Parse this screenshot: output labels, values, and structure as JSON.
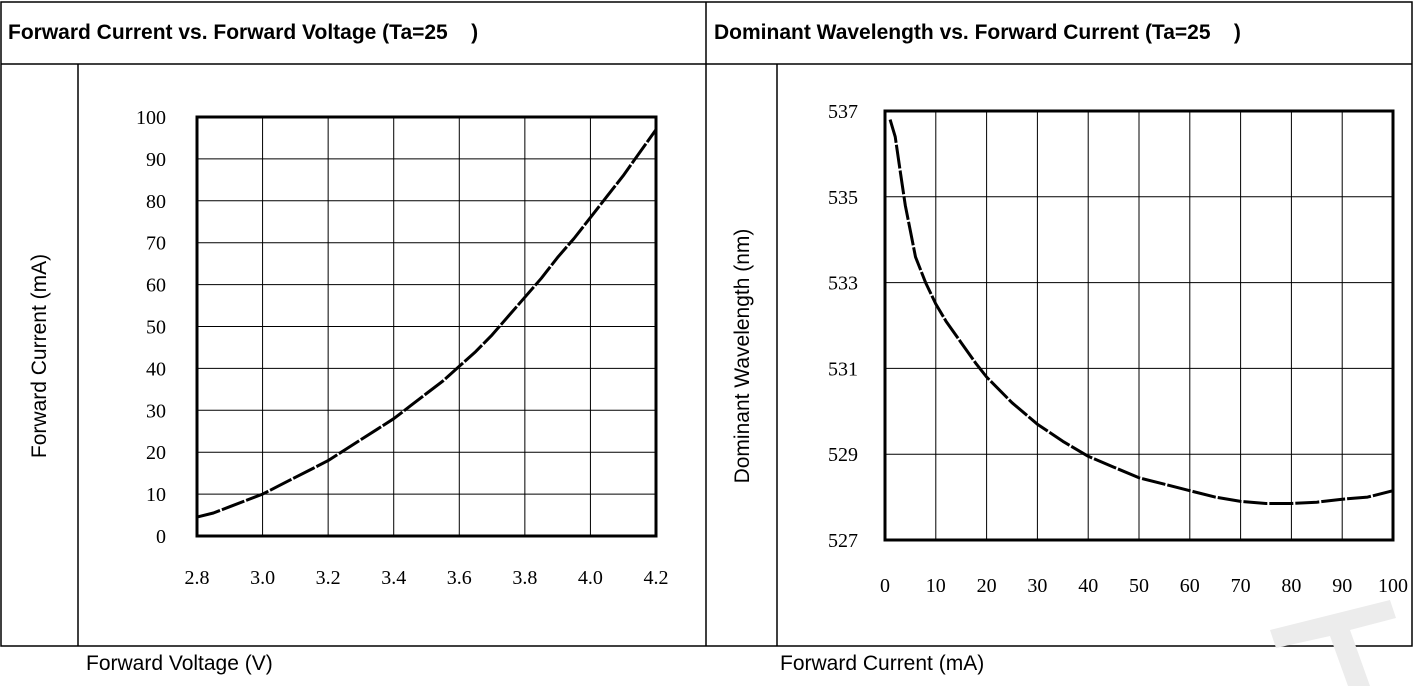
{
  "charts": [
    {
      "header": "Forward Current vs. Forward Voltage (Ta=25    )",
      "ylabel": "Forward Current (mA)",
      "xlabel": "Forward Voltage (V)"
    },
    {
      "header": "Dominant Wavelength vs. Forward Current (Ta=25    )",
      "ylabel": "Dominant Wavelength (nm)",
      "xlabel": "Forward Current (mA)"
    }
  ],
  "chart_data": [
    {
      "type": "line",
      "title": "Forward Current vs. Forward Voltage (Ta=25    )",
      "xlabel": "Forward Voltage (V)",
      "ylabel": "Forward Current (mA)",
      "xlim": [
        2.8,
        4.2
      ],
      "ylim": [
        0,
        100
      ],
      "xticks": [
        "2.8",
        "3.0",
        "3.2",
        "3.4",
        "3.6",
        "3.8",
        "4.0",
        "4.2"
      ],
      "yticks": [
        "0",
        "10",
        "20",
        "30",
        "40",
        "50",
        "60",
        "70",
        "80",
        "90",
        "100"
      ],
      "grid": true,
      "series": [
        {
          "x": [
            2.8,
            2.85,
            2.9,
            2.95,
            3.0,
            3.05,
            3.1,
            3.15,
            3.2,
            3.25,
            3.3,
            3.35,
            3.4,
            3.45,
            3.5,
            3.55,
            3.6,
            3.65,
            3.7,
            3.75,
            3.8,
            3.85,
            3.9,
            3.95,
            4.0,
            4.05,
            4.1,
            4.15,
            4.2
          ],
          "y": [
            4.5,
            5.5,
            7,
            8.5,
            10,
            12,
            14,
            16,
            18,
            20.5,
            23,
            25.5,
            28,
            31,
            34,
            37,
            40.5,
            44,
            48,
            52.5,
            57,
            61.5,
            66.5,
            71,
            76,
            81,
            86,
            91.5,
            97
          ]
        }
      ]
    },
    {
      "type": "line",
      "title": "Dominant Wavelength vs. Forward Current (Ta=25    )",
      "xlabel": "Forward Current (mA)",
      "ylabel": "Dominant Wavelength (nm)",
      "xlim": [
        0,
        100
      ],
      "ylim": [
        527,
        537
      ],
      "xticks": [
        "0",
        "10",
        "20",
        "30",
        "40",
        "50",
        "60",
        "70",
        "80",
        "90",
        "100"
      ],
      "yticks": [
        "527",
        "529",
        "531",
        "533",
        "535",
        "537"
      ],
      "grid": true,
      "series": [
        {
          "x": [
            1,
            2,
            3,
            4,
            5,
            6,
            8,
            10,
            12,
            15,
            18,
            20,
            25,
            30,
            35,
            40,
            45,
            50,
            55,
            60,
            65,
            70,
            75,
            80,
            85,
            90,
            95,
            100
          ],
          "y": [
            536.8,
            536.4,
            535.6,
            534.8,
            534.2,
            533.6,
            533.0,
            532.5,
            532.1,
            531.6,
            531.1,
            530.8,
            530.2,
            529.7,
            529.3,
            528.95,
            528.7,
            528.45,
            528.3,
            528.15,
            528.0,
            527.9,
            527.85,
            527.85,
            527.88,
            527.95,
            528.0,
            528.15
          ]
        }
      ]
    }
  ]
}
